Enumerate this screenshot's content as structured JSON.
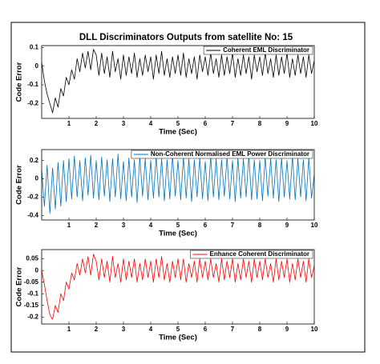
{
  "chart_data": [
    {
      "type": "line",
      "title": "DLL Discriminators Outputs from satellite No: 15",
      "xlabel": "Time (Sec)",
      "ylabel": "Code Error",
      "xlim": [
        0,
        10
      ],
      "xticks": [
        1,
        2,
        3,
        4,
        5,
        6,
        7,
        8,
        9,
        10
      ],
      "ylim": [
        -0.28,
        0.11
      ],
      "yticks": [
        0.1,
        0,
        -0.1,
        -0.2
      ],
      "legend": "upper right",
      "x": [
        0,
        0.1,
        0.2,
        0.3,
        0.4,
        0.5,
        0.6,
        0.7,
        0.8,
        0.9,
        1,
        1.1,
        1.2,
        1.3,
        1.4,
        1.5,
        1.6,
        1.7,
        1.8,
        1.9,
        2,
        2.1,
        2.2,
        2.3,
        2.4,
        2.5,
        2.6,
        2.7,
        2.8,
        2.9,
        3,
        3.1,
        3.2,
        3.3,
        3.4,
        3.5,
        3.6,
        3.7,
        3.8,
        3.9,
        4,
        4.1,
        4.2,
        4.3,
        4.4,
        4.5,
        4.6,
        4.7,
        4.8,
        4.9,
        5,
        5.1,
        5.2,
        5.3,
        5.4,
        5.5,
        5.6,
        5.7,
        5.8,
        5.9,
        6,
        6.1,
        6.2,
        6.3,
        6.4,
        6.5,
        6.6,
        6.7,
        6.8,
        6.9,
        7,
        7.1,
        7.2,
        7.3,
        7.4,
        7.5,
        7.6,
        7.7,
        7.8,
        7.9,
        8,
        8.1,
        8.2,
        8.3,
        8.4,
        8.5,
        8.6,
        8.7,
        8.8,
        8.9,
        9,
        9.1,
        9.2,
        9.3,
        9.4,
        9.5,
        9.6,
        9.7,
        9.8,
        9.9,
        10
      ],
      "series": [
        {
          "name": "Coherent EML Discriminator",
          "color": "#000000",
          "values": [
            0.02,
            -0.08,
            -0.15,
            -0.2,
            -0.25,
            -0.17,
            -0.22,
            -0.12,
            -0.16,
            -0.06,
            -0.1,
            -0.02,
            -0.07,
            0.04,
            -0.03,
            0.07,
            -0.01,
            0.08,
            -0.02,
            0.09,
            0.06,
            -0.05,
            0.07,
            -0.04,
            0.05,
            -0.06,
            0.08,
            -0.03,
            0.04,
            -0.07,
            0.06,
            -0.05,
            0.05,
            -0.04,
            0.07,
            -0.06,
            0.04,
            -0.05,
            0.06,
            -0.03,
            0.05,
            -0.07,
            0.06,
            -0.04,
            0.08,
            -0.05,
            0.04,
            -0.06,
            0.05,
            -0.04,
            0.06,
            -0.05,
            0.07,
            -0.06,
            0.04,
            -0.04,
            0.05,
            -0.07,
            0.06,
            -0.03,
            0.05,
            -0.05,
            0.07,
            -0.04,
            0.04,
            -0.06,
            0.06,
            -0.05,
            0.05,
            -0.04,
            0.07,
            -0.06,
            0.04,
            -0.05,
            0.06,
            -0.04,
            0.05,
            -0.07,
            0.06,
            -0.03,
            0.05,
            -0.05,
            0.07,
            -0.04,
            0.04,
            -0.06,
            0.06,
            -0.05,
            0.05,
            -0.04,
            0.07,
            -0.06,
            0.04,
            -0.05,
            0.06,
            -0.04,
            0.05,
            -0.06,
            0.06,
            -0.04,
            0.03
          ]
        }
      ]
    },
    {
      "type": "line",
      "xlabel": "Time (Sec)",
      "ylabel": "Code Error",
      "xlim": [
        0,
        10
      ],
      "xticks": [
        1,
        2,
        3,
        4,
        5,
        6,
        7,
        8,
        9,
        10
      ],
      "ylim": [
        -0.45,
        0.32
      ],
      "yticks": [
        0.2,
        0,
        -0.2,
        -0.4
      ],
      "legend": "upper right",
      "x": [
        0,
        0.1,
        0.2,
        0.3,
        0.4,
        0.5,
        0.6,
        0.7,
        0.8,
        0.9,
        1,
        1.1,
        1.2,
        1.3,
        1.4,
        1.5,
        1.6,
        1.7,
        1.8,
        1.9,
        2,
        2.1,
        2.2,
        2.3,
        2.4,
        2.5,
        2.6,
        2.7,
        2.8,
        2.9,
        3,
        3.1,
        3.2,
        3.3,
        3.4,
        3.5,
        3.6,
        3.7,
        3.8,
        3.9,
        4,
        4.1,
        4.2,
        4.3,
        4.4,
        4.5,
        4.6,
        4.7,
        4.8,
        4.9,
        5,
        5.1,
        5.2,
        5.3,
        5.4,
        5.5,
        5.6,
        5.7,
        5.8,
        5.9,
        6,
        6.1,
        6.2,
        6.3,
        6.4,
        6.5,
        6.6,
        6.7,
        6.8,
        6.9,
        7,
        7.1,
        7.2,
        7.3,
        7.4,
        7.5,
        7.6,
        7.7,
        7.8,
        7.9,
        8,
        8.1,
        8.2,
        8.3,
        8.4,
        8.5,
        8.6,
        8.7,
        8.8,
        8.9,
        9,
        9.1,
        9.2,
        9.3,
        9.4,
        9.5,
        9.6,
        9.7,
        9.8,
        9.9,
        10
      ],
      "series": [
        {
          "name": "Non-Coherent Normalised EML Power Discriminator",
          "color": "#0072bd",
          "values": [
            0.1,
            -0.3,
            0.15,
            -0.38,
            0.12,
            -0.33,
            0.18,
            -0.3,
            0.2,
            -0.25,
            0.22,
            -0.22,
            0.25,
            -0.2,
            0.2,
            -0.24,
            0.23,
            -0.18,
            0.26,
            -0.21,
            0.2,
            -0.23,
            0.24,
            -0.19,
            0.21,
            -0.25,
            0.22,
            -0.2,
            0.27,
            -0.22,
            0.19,
            -0.24,
            0.23,
            -0.2,
            0.21,
            -0.26,
            0.24,
            -0.19,
            0.22,
            -0.23,
            0.2,
            -0.21,
            0.25,
            -0.2,
            0.22,
            -0.24,
            0.21,
            -0.22,
            0.26,
            -0.19,
            0.2,
            -0.23,
            0.24,
            -0.21,
            0.22,
            -0.25,
            0.21,
            -0.2,
            0.23,
            -0.22,
            0.19,
            -0.24,
            0.25,
            -0.2,
            0.22,
            -0.23,
            0.21,
            -0.19,
            0.24,
            -0.22,
            0.2,
            -0.25,
            0.23,
            -0.21,
            0.22,
            -0.2,
            0.26,
            -0.23,
            0.21,
            -0.22,
            0.2,
            -0.24,
            0.24,
            -0.19,
            0.22,
            -0.21,
            0.21,
            -0.25,
            0.23,
            -0.2,
            0.2,
            -0.22,
            0.25,
            -0.23,
            0.22,
            -0.2,
            0.21,
            -0.24,
            0.23,
            -0.21,
            0.05
          ]
        }
      ]
    },
    {
      "type": "line",
      "xlabel": "Time (Sec)",
      "ylabel": "Code Error",
      "xlim": [
        0,
        10
      ],
      "xticks": [
        1,
        2,
        3,
        4,
        5,
        6,
        7,
        8,
        9,
        10
      ],
      "ylim": [
        -0.23,
        0.09
      ],
      "yticks": [
        0.05,
        0,
        -0.05,
        -0.1,
        -0.15,
        -0.2
      ],
      "legend": "upper right",
      "x": [
        0,
        0.1,
        0.2,
        0.3,
        0.4,
        0.5,
        0.6,
        0.7,
        0.8,
        0.9,
        1,
        1.1,
        1.2,
        1.3,
        1.4,
        1.5,
        1.6,
        1.7,
        1.8,
        1.9,
        2,
        2.1,
        2.2,
        2.3,
        2.4,
        2.5,
        2.6,
        2.7,
        2.8,
        2.9,
        3,
        3.1,
        3.2,
        3.3,
        3.4,
        3.5,
        3.6,
        3.7,
        3.8,
        3.9,
        4,
        4.1,
        4.2,
        4.3,
        4.4,
        4.5,
        4.6,
        4.7,
        4.8,
        4.9,
        5,
        5.1,
        5.2,
        5.3,
        5.4,
        5.5,
        5.6,
        5.7,
        5.8,
        5.9,
        6,
        6.1,
        6.2,
        6.3,
        6.4,
        6.5,
        6.6,
        6.7,
        6.8,
        6.9,
        7,
        7.1,
        7.2,
        7.3,
        7.4,
        7.5,
        7.6,
        7.7,
        7.8,
        7.9,
        8,
        8.1,
        8.2,
        8.3,
        8.4,
        8.5,
        8.6,
        8.7,
        8.8,
        8.9,
        9,
        9.1,
        9.2,
        9.3,
        9.4,
        9.5,
        9.6,
        9.7,
        9.8,
        9.9,
        10
      ],
      "series": [
        {
          "name": "Enhance Coherent Discriminator",
          "color": "#ff0000",
          "values": [
            0,
            -0.06,
            -0.13,
            -0.19,
            -0.21,
            -0.15,
            -0.18,
            -0.1,
            -0.13,
            -0.05,
            -0.08,
            -0.01,
            -0.04,
            0.03,
            -0.02,
            0.05,
            -0.01,
            0.06,
            -0.02,
            0.07,
            0.04,
            -0.04,
            0.05,
            -0.03,
            0.04,
            -0.05,
            0.06,
            -0.03,
            0.03,
            -0.05,
            0.05,
            -0.04,
            0.04,
            -0.03,
            0.05,
            -0.05,
            0.03,
            -0.04,
            0.05,
            -0.03,
            0.04,
            -0.05,
            0.05,
            -0.03,
            0.06,
            -0.04,
            0.03,
            -0.05,
            0.04,
            -0.03,
            0.05,
            -0.04,
            0.05,
            -0.05,
            0.03,
            -0.03,
            0.04,
            -0.05,
            0.05,
            -0.03,
            0.04,
            -0.04,
            0.05,
            -0.03,
            0.03,
            -0.05,
            0.05,
            -0.04,
            0.04,
            -0.03,
            0.05,
            -0.05,
            0.03,
            -0.04,
            0.05,
            -0.03,
            0.04,
            -0.05,
            0.05,
            -0.03,
            0.04,
            -0.04,
            0.05,
            -0.03,
            0.03,
            -0.05,
            0.05,
            -0.04,
            0.04,
            -0.03,
            0.05,
            -0.05,
            0.03,
            -0.04,
            0.05,
            -0.03,
            0.04,
            -0.05,
            0.05,
            -0.03,
            0.02
          ]
        }
      ]
    }
  ]
}
